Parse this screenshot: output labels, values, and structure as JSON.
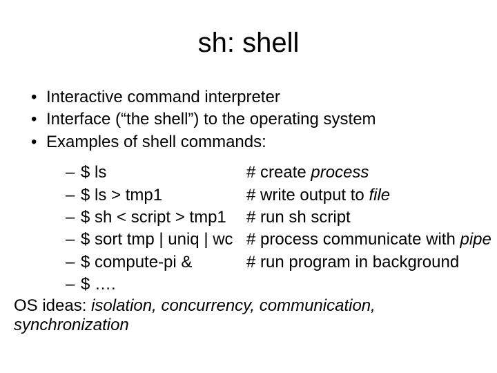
{
  "colors": {
    "background": "#ffffff",
    "text": "#000000"
  },
  "typography": {
    "family": "Arial",
    "title_fontsize": 40,
    "body_fontsize": 24
  },
  "title": "sh: shell",
  "bullets": [
    "Interactive command interpreter",
    "Interface (“the shell”) to the operating system",
    "Examples of shell commands:"
  ],
  "examples": [
    {
      "cmd": "$ ls",
      "hash": "# create ",
      "em": "process",
      "tail": ""
    },
    {
      "cmd": "$ ls > tmp1",
      "hash": "# write output to ",
      "em": "file",
      "tail": ""
    },
    {
      "cmd": "$ sh < script > tmp1",
      "hash": "# run sh script",
      "em": "",
      "tail": ""
    },
    {
      "cmd": "$ sort tmp | uniq | wc",
      "hash": "# process communicate with ",
      "em": "pipe",
      "tail": ""
    },
    {
      "cmd": "$ compute-pi &",
      "hash": "# run program in background",
      "em": "",
      "tail": ""
    },
    {
      "cmd": "$ ….",
      "hash": "",
      "em": "",
      "tail": ""
    }
  ],
  "footer": {
    "lead": "OS ideas: ",
    "ideas": "isolation, concurrency, communication, synchronization"
  }
}
